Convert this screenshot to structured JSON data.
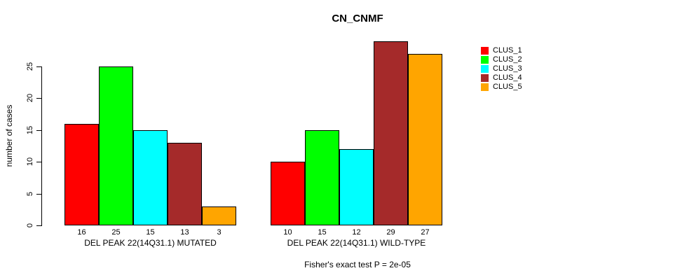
{
  "chart_data": {
    "type": "bar",
    "title": "CN_CNMF",
    "ylabel": "number of cases",
    "xlabel": "",
    "ylim": [
      0,
      25
    ],
    "yticks": [
      0,
      5,
      10,
      15,
      20,
      25
    ],
    "grid": false,
    "legend_position": "right",
    "categories": [
      "DEL PEAK 22(14Q31.1) MUTATED",
      "DEL PEAK 22(14Q31.1) WILD-TYPE"
    ],
    "series": [
      {
        "name": "CLUS_1",
        "color": "#FF0000",
        "values": [
          16,
          10
        ]
      },
      {
        "name": "CLUS_2",
        "color": "#00FF00",
        "values": [
          25,
          15
        ]
      },
      {
        "name": "CLUS_3",
        "color": "#00FFFF",
        "values": [
          15,
          12
        ]
      },
      {
        "name": "CLUS_4",
        "color": "#A52A2A",
        "values": [
          13,
          29
        ]
      },
      {
        "name": "CLUS_5",
        "color": "#FFA500",
        "values": [
          3,
          27
        ]
      }
    ],
    "groups": [
      {
        "label": "DEL PEAK 22(14Q31.1) MUTATED",
        "values": [
          16,
          25,
          15,
          13,
          3
        ]
      },
      {
        "label": "DEL PEAK 22(14Q31.1) WILD-TYPE",
        "values": [
          10,
          15,
          12,
          29,
          27
        ]
      }
    ],
    "series_colors": [
      "#FF0000",
      "#00FF00",
      "#00FFFF",
      "#A52A2A",
      "#FFA500"
    ],
    "legend": [
      {
        "label": "CLUS_1",
        "color": "#FF0000"
      },
      {
        "label": "CLUS_2",
        "color": "#00FF00"
      },
      {
        "label": "CLUS_3",
        "color": "#00FFFF"
      },
      {
        "label": "CLUS_4",
        "color": "#A52A2A"
      },
      {
        "label": "CLUS_5",
        "color": "#FFA500"
      }
    ],
    "annotation": "Fisher's exact test P = 2e-05",
    "axis_color": "#000000",
    "background_color": "#FFFFFF"
  }
}
